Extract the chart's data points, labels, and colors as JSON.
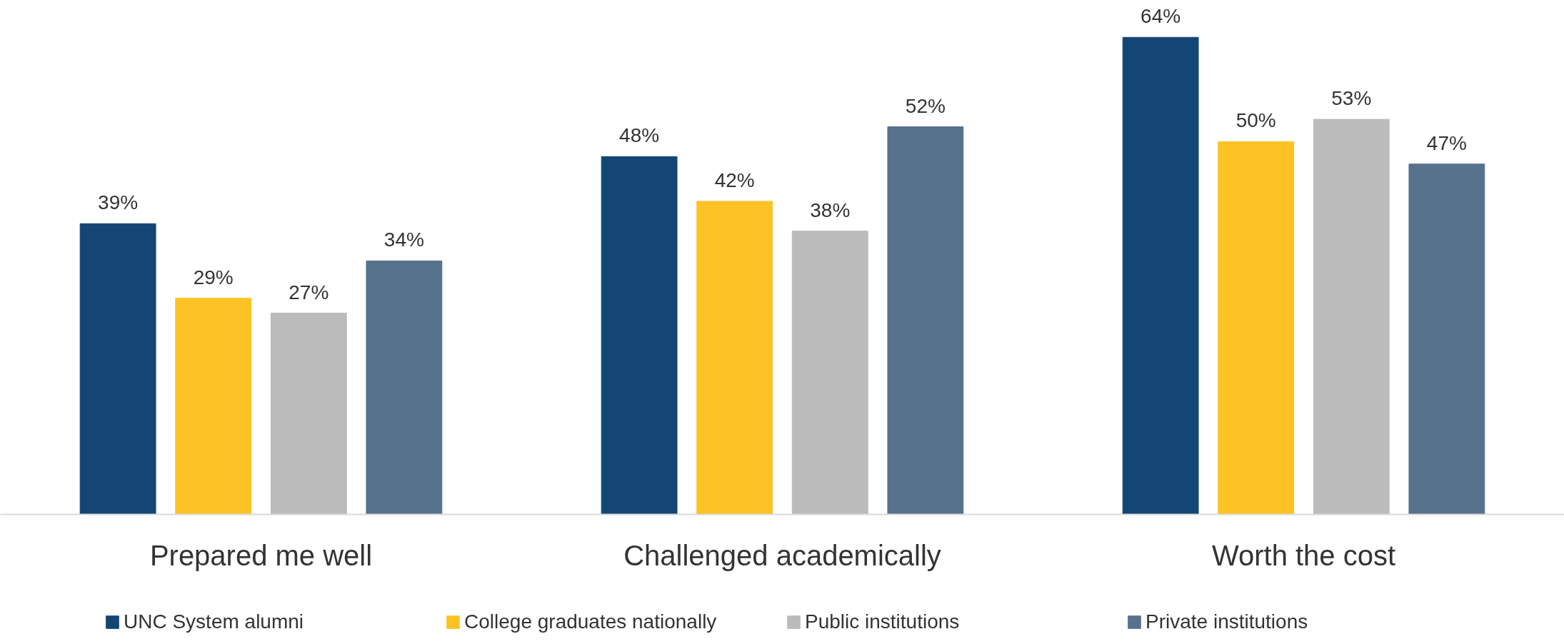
{
  "chart_data": {
    "type": "bar",
    "categories": [
      "Prepared me well",
      "Challenged academically",
      "Worth the cost"
    ],
    "series": [
      {
        "name": "UNC System alumni",
        "color": "#134674",
        "values": [
          39,
          48,
          64
        ],
        "value_labels": [
          "39%",
          "48%",
          "64%"
        ]
      },
      {
        "name": "College graduates nationally",
        "color": "#fdc325",
        "values": [
          29,
          42,
          50
        ],
        "value_labels": [
          "29%",
          "42%",
          "50%"
        ]
      },
      {
        "name": "Public institutions",
        "color": "#bbbbbb",
        "values": [
          27,
          38,
          53
        ],
        "value_labels": [
          "27%",
          "38%",
          "53%"
        ]
      },
      {
        "name": "Private institutions",
        "color": "#57728c",
        "values": [
          34,
          52,
          47
        ],
        "value_labels": [
          "34%",
          "52%",
          "47%"
        ]
      }
    ],
    "legend": "bottom",
    "grid": false,
    "tick_labels": "x"
  }
}
